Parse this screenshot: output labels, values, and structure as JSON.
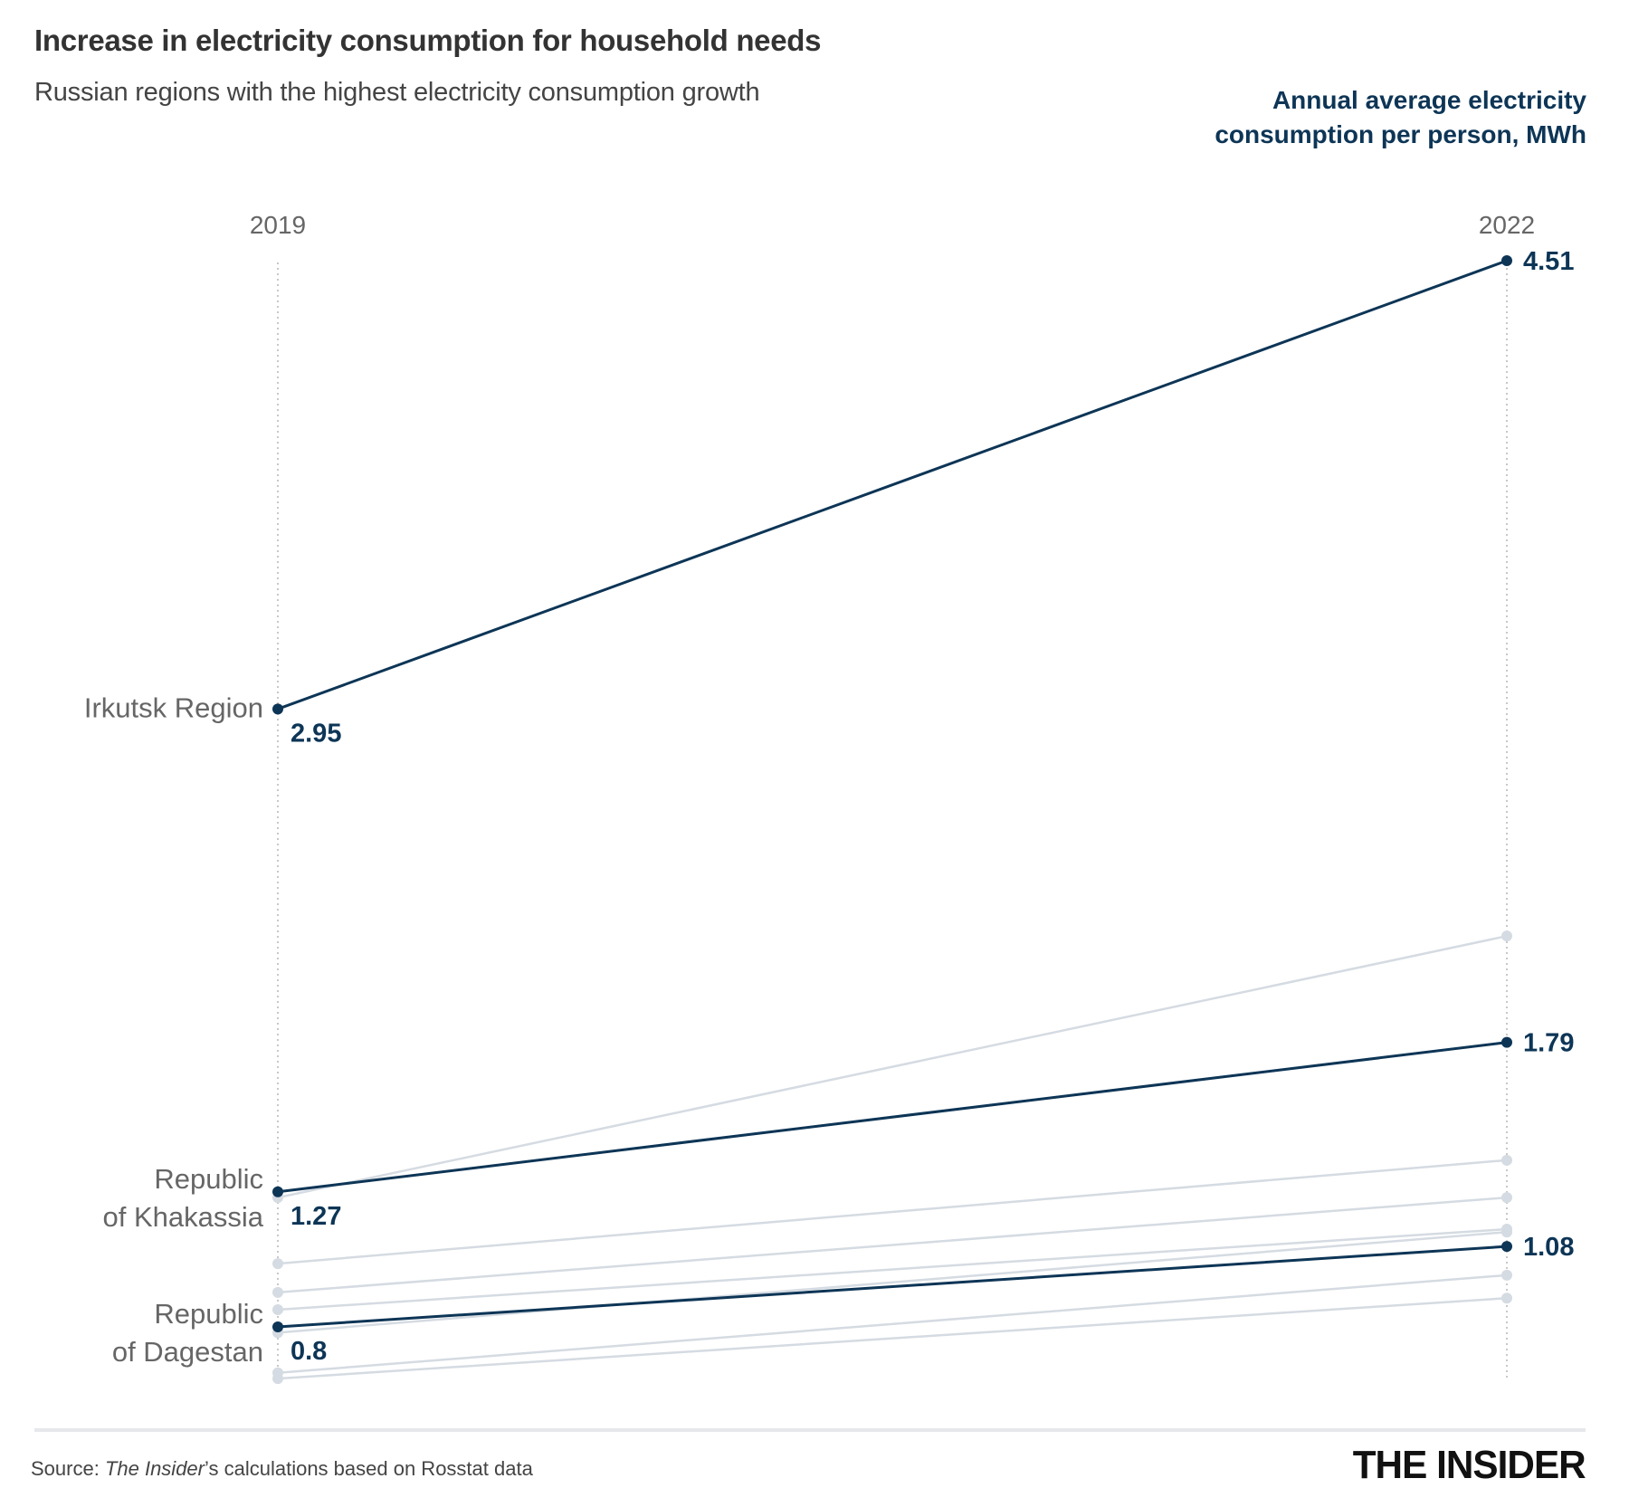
{
  "title": "Increase in electricity consumption for household needs",
  "subtitle": "Russian regions with the highest electricity consumption growth",
  "source_prefix": "Source: ",
  "source_italic": "The Insider",
  "source_rest": "’s calculations based on Rosstat data",
  "logo": "THE INSIDER",
  "colors": {
    "highlight": "#0d3556",
    "muted": "#d5dbe2",
    "gridline": "#c8c8c8",
    "label": "#666666"
  },
  "chart_data": {
    "type": "line",
    "subtype": "slope",
    "x": [
      "2019",
      "2022"
    ],
    "ylabel": "Annual average electricity consumption per person, MWh",
    "ylim": [
      0.6,
      4.6
    ],
    "grid": false,
    "series": [
      {
        "name": "Irkutsk Region",
        "values": [
          2.95,
          4.51
        ],
        "highlight": true,
        "show_values": true
      },
      {
        "name": "Republic of Khakassia",
        "values": [
          1.27,
          1.79
        ],
        "highlight": true,
        "show_values": true
      },
      {
        "name": "Republic of Dagestan",
        "values": [
          0.8,
          1.08
        ],
        "highlight": true,
        "show_values": true
      },
      {
        "values": [
          1.25,
          2.16
        ],
        "highlight": false
      },
      {
        "values": [
          1.02,
          1.38
        ],
        "highlight": false
      },
      {
        "values": [
          0.92,
          1.25
        ],
        "highlight": false
      },
      {
        "values": [
          0.86,
          1.14
        ],
        "highlight": false
      },
      {
        "values": [
          0.78,
          1.13
        ],
        "highlight": false
      },
      {
        "values": [
          0.64,
          0.98
        ],
        "highlight": false
      },
      {
        "values": [
          0.62,
          0.9
        ],
        "highlight": false
      }
    ]
  }
}
